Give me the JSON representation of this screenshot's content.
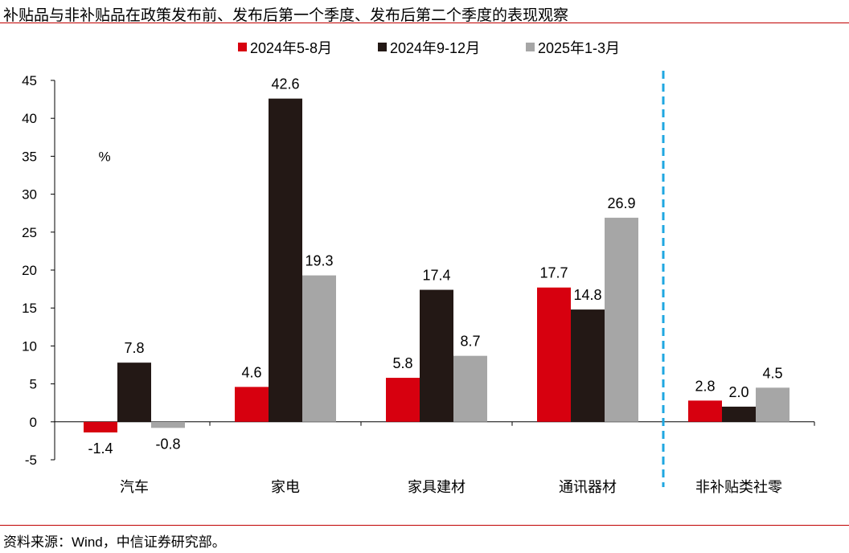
{
  "title": "补贴品与非补贴品在政策发布前、发布后第一个季度、发布后第二个季度的表现观察",
  "source": "资料来源：Wind，中信证券研究部。",
  "chart_data": {
    "type": "bar",
    "title": "补贴品与非补贴品在政策发布前、发布后第一个季度、发布后第二个季度的表现观察",
    "ylabel": "%",
    "xlabel": "",
    "categories": [
      "汽车",
      "家电",
      "家具建材",
      "通讯器材",
      "非补贴类社零"
    ],
    "series": [
      {
        "name": "2024年5-8月",
        "color": "#d7000f",
        "values": [
          -1.4,
          4.6,
          5.8,
          17.7,
          2.8
        ]
      },
      {
        "name": "2024年9-12月",
        "color": "#231815",
        "values": [
          7.8,
          42.6,
          17.4,
          14.8,
          2.0
        ]
      },
      {
        "name": "2025年1-3月",
        "color": "#a6a6a6",
        "values": [
          -0.8,
          19.3,
          8.7,
          26.9,
          4.5
        ]
      }
    ],
    "ylim": [
      -5,
      45
    ],
    "yticks": [
      -5,
      0,
      5,
      10,
      15,
      20,
      25,
      30,
      35,
      40,
      45
    ],
    "grid": false,
    "legend": "top",
    "separator": {
      "after_category": "通讯器材",
      "style": "dashed",
      "color": "#1fa7e1"
    }
  }
}
